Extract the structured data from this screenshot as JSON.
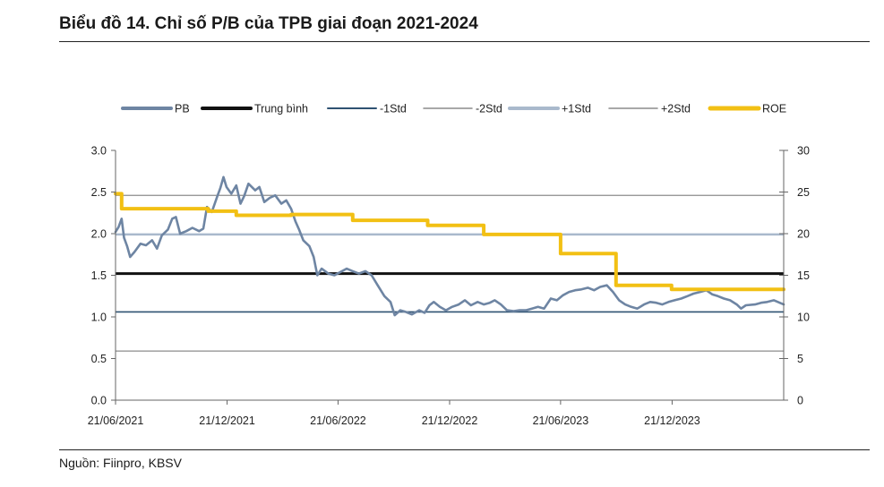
{
  "page": {
    "title": "Biểu đồ 14. Chỉ số P/B của TPB giai đoạn 2021-2024",
    "source": "Nguồn: Fiinpro, KBSV"
  },
  "chart_data": {
    "type": "line",
    "title": "Biểu đồ 14. Chỉ số P/B của TPB giai đoạn 2021-2024",
    "x_range": [
      "2021-06-21",
      "2024-06-21"
    ],
    "x_ticks": [
      "21/06/2021",
      "21/12/2021",
      "21/06/2022",
      "21/12/2022",
      "21/06/2023",
      "21/12/2023"
    ],
    "y_left": {
      "range": [
        0,
        3.0
      ],
      "ticks": [
        "0.0",
        "0.5",
        "1.0",
        "1.5",
        "2.0",
        "2.5",
        "3.0"
      ]
    },
    "y_right": {
      "range": [
        0,
        30
      ],
      "ticks": [
        "0",
        "5",
        "10",
        "15",
        "20",
        "25",
        "30"
      ]
    },
    "grid": false,
    "legend_position": "top",
    "legend": [
      "PB",
      "Trung bình",
      "-1Std",
      "-2Std",
      "+1Std",
      "+2Std",
      "ROE"
    ],
    "reference_lines": {
      "Trung bình": 1.52,
      "-1Std": 1.06,
      "-2Std": 0.59,
      "+1Std": 1.99,
      "+2Std": 2.46
    },
    "colors": {
      "PB": "#6e85a3",
      "Trung bình": "#111111",
      "-1Std": "#2f5272",
      "-2Std": "#8c8c8c",
      "+1Std": "#a9b9cc",
      "+2Std": "#8c8c8c",
      "ROE": "#f2c014"
    },
    "series": [
      {
        "name": "PB",
        "axis": "left",
        "points": [
          [
            "2021-06-21",
            2.02
          ],
          [
            "2021-06-26",
            2.08
          ],
          [
            "2021-07-01",
            2.18
          ],
          [
            "2021-07-05",
            1.95
          ],
          [
            "2021-07-10",
            1.85
          ],
          [
            "2021-07-15",
            1.72
          ],
          [
            "2021-07-22",
            1.78
          ],
          [
            "2021-08-01",
            1.88
          ],
          [
            "2021-08-10",
            1.86
          ],
          [
            "2021-08-20",
            1.92
          ],
          [
            "2021-08-28",
            1.82
          ],
          [
            "2021-09-05",
            1.98
          ],
          [
            "2021-09-15",
            2.05
          ],
          [
            "2021-09-22",
            2.18
          ],
          [
            "2021-09-28",
            2.2
          ],
          [
            "2021-10-05",
            2.0
          ],
          [
            "2021-10-15",
            2.03
          ],
          [
            "2021-10-25",
            2.07
          ],
          [
            "2021-11-05",
            2.03
          ],
          [
            "2021-11-12",
            2.06
          ],
          [
            "2021-11-18",
            2.32
          ],
          [
            "2021-11-26",
            2.26
          ],
          [
            "2021-12-05",
            2.45
          ],
          [
            "2021-12-10",
            2.55
          ],
          [
            "2021-12-15",
            2.68
          ],
          [
            "2021-12-20",
            2.56
          ],
          [
            "2021-12-28",
            2.48
          ],
          [
            "2022-01-05",
            2.58
          ],
          [
            "2022-01-12",
            2.36
          ],
          [
            "2022-01-18",
            2.45
          ],
          [
            "2022-01-25",
            2.6
          ],
          [
            "2022-02-05",
            2.52
          ],
          [
            "2022-02-12",
            2.56
          ],
          [
            "2022-02-20",
            2.38
          ],
          [
            "2022-03-01",
            2.43
          ],
          [
            "2022-03-10",
            2.46
          ],
          [
            "2022-03-20",
            2.36
          ],
          [
            "2022-03-28",
            2.4
          ],
          [
            "2022-04-05",
            2.3
          ],
          [
            "2022-04-12",
            2.15
          ],
          [
            "2022-04-18",
            2.05
          ],
          [
            "2022-04-25",
            1.92
          ],
          [
            "2022-05-05",
            1.85
          ],
          [
            "2022-05-12",
            1.72
          ],
          [
            "2022-05-18",
            1.5
          ],
          [
            "2022-05-25",
            1.58
          ],
          [
            "2022-06-05",
            1.52
          ],
          [
            "2022-06-15",
            1.5
          ],
          [
            "2022-06-25",
            1.54
          ],
          [
            "2022-07-05",
            1.58
          ],
          [
            "2022-07-15",
            1.55
          ],
          [
            "2022-07-25",
            1.52
          ],
          [
            "2022-08-05",
            1.55
          ],
          [
            "2022-08-15",
            1.5
          ],
          [
            "2022-08-25",
            1.38
          ],
          [
            "2022-09-05",
            1.25
          ],
          [
            "2022-09-15",
            1.18
          ],
          [
            "2022-09-22",
            1.02
          ],
          [
            "2022-10-01",
            1.08
          ],
          [
            "2022-10-10",
            1.06
          ],
          [
            "2022-10-20",
            1.03
          ],
          [
            "2022-11-01",
            1.08
          ],
          [
            "2022-11-10",
            1.05
          ],
          [
            "2022-11-18",
            1.14
          ],
          [
            "2022-11-25",
            1.18
          ],
          [
            "2022-12-05",
            1.12
          ],
          [
            "2022-12-15",
            1.08
          ],
          [
            "2022-12-25",
            1.12
          ],
          [
            "2023-01-05",
            1.15
          ],
          [
            "2023-01-15",
            1.2
          ],
          [
            "2023-01-25",
            1.14
          ],
          [
            "2023-02-05",
            1.18
          ],
          [
            "2023-02-15",
            1.15
          ],
          [
            "2023-02-25",
            1.17
          ],
          [
            "2023-03-05",
            1.2
          ],
          [
            "2023-03-15",
            1.15
          ],
          [
            "2023-03-25",
            1.08
          ],
          [
            "2023-04-05",
            1.07
          ],
          [
            "2023-04-15",
            1.08
          ],
          [
            "2023-04-25",
            1.08
          ],
          [
            "2023-05-05",
            1.1
          ],
          [
            "2023-05-15",
            1.12
          ],
          [
            "2023-05-25",
            1.1
          ],
          [
            "2023-06-05",
            1.22
          ],
          [
            "2023-06-15",
            1.2
          ],
          [
            "2023-06-25",
            1.26
          ],
          [
            "2023-07-05",
            1.3
          ],
          [
            "2023-07-15",
            1.32
          ],
          [
            "2023-07-25",
            1.33
          ],
          [
            "2023-08-05",
            1.35
          ],
          [
            "2023-08-15",
            1.32
          ],
          [
            "2023-08-25",
            1.36
          ],
          [
            "2023-09-05",
            1.38
          ],
          [
            "2023-09-15",
            1.3
          ],
          [
            "2023-09-25",
            1.2
          ],
          [
            "2023-10-05",
            1.15
          ],
          [
            "2023-10-15",
            1.12
          ],
          [
            "2023-10-25",
            1.1
          ],
          [
            "2023-11-05",
            1.15
          ],
          [
            "2023-11-15",
            1.18
          ],
          [
            "2023-11-25",
            1.17
          ],
          [
            "2023-12-05",
            1.15
          ],
          [
            "2023-12-15",
            1.18
          ],
          [
            "2023-12-25",
            1.2
          ],
          [
            "2024-01-05",
            1.22
          ],
          [
            "2024-01-15",
            1.25
          ],
          [
            "2024-01-25",
            1.28
          ],
          [
            "2024-02-05",
            1.3
          ],
          [
            "2024-02-15",
            1.32
          ],
          [
            "2024-02-25",
            1.27
          ],
          [
            "2024-03-05",
            1.25
          ],
          [
            "2024-03-15",
            1.22
          ],
          [
            "2024-03-25",
            1.2
          ],
          [
            "2024-04-05",
            1.15
          ],
          [
            "2024-04-12",
            1.1
          ],
          [
            "2024-04-20",
            1.14
          ],
          [
            "2024-05-05",
            1.15
          ],
          [
            "2024-05-15",
            1.17
          ],
          [
            "2024-05-25",
            1.18
          ],
          [
            "2024-06-05",
            1.2
          ],
          [
            "2024-06-21",
            1.15
          ]
        ]
      },
      {
        "name": "ROE",
        "axis": "right",
        "points": [
          [
            "2021-06-21",
            24.8
          ],
          [
            "2021-07-01",
            24.8
          ],
          [
            "2021-07-01",
            23.0
          ],
          [
            "2021-11-20",
            23.0
          ],
          [
            "2021-11-20",
            22.7
          ],
          [
            "2022-01-05",
            22.7
          ],
          [
            "2022-01-05",
            22.2
          ],
          [
            "2022-04-05",
            22.2
          ],
          [
            "2022-04-05",
            22.3
          ],
          [
            "2022-07-15",
            22.3
          ],
          [
            "2022-07-15",
            21.6
          ],
          [
            "2022-11-15",
            21.6
          ],
          [
            "2022-11-15",
            21.0
          ],
          [
            "2023-02-15",
            21.0
          ],
          [
            "2023-02-15",
            19.9
          ],
          [
            "2023-06-21",
            19.9
          ],
          [
            "2023-06-21",
            17.6
          ],
          [
            "2023-09-20",
            17.6
          ],
          [
            "2023-09-20",
            13.8
          ],
          [
            "2023-12-20",
            13.8
          ],
          [
            "2023-12-20",
            13.3
          ],
          [
            "2024-06-21",
            13.3
          ]
        ]
      }
    ]
  }
}
